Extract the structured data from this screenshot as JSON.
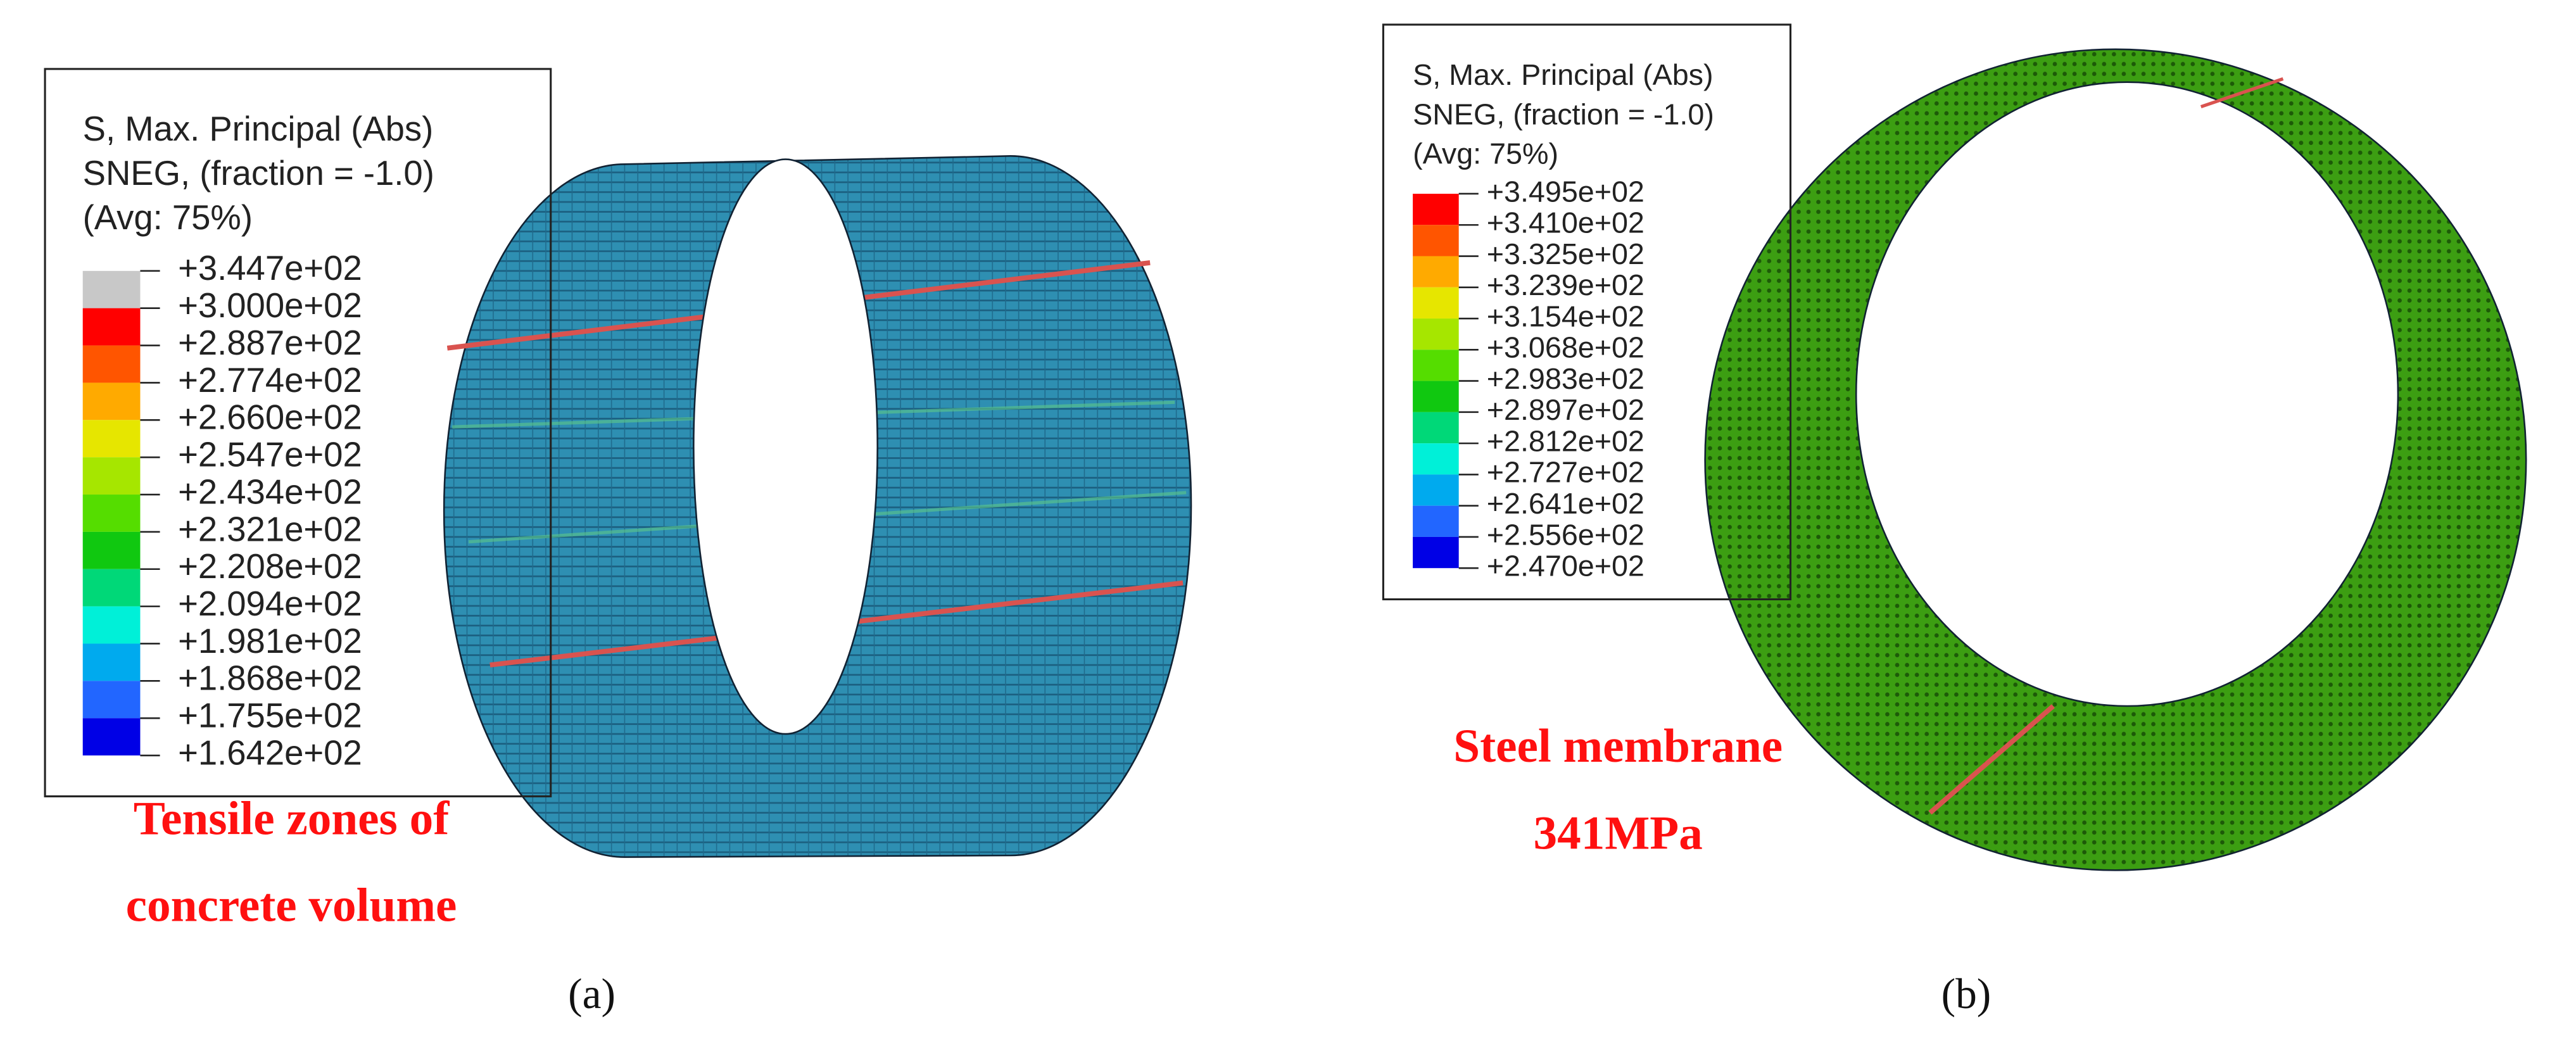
{
  "panels": [
    {
      "legend": {
        "title": [
          "S, Max. Principal (Abs)",
          "SNEG, (fraction = -1.0)",
          "(Avg: 75%)"
        ],
        "levels": [
          "+3.447e+02",
          "+3.000e+02",
          "+2.887e+02",
          "+2.774e+02",
          "+2.660e+02",
          "+2.547e+02",
          "+2.434e+02",
          "+2.321e+02",
          "+2.208e+02",
          "+2.094e+02",
          "+1.981e+02",
          "+1.868e+02",
          "+1.755e+02",
          "+1.642e+02"
        ],
        "colors": [
          "#c8c8c8",
          "#ff0000",
          "#ff5500",
          "#ffaa00",
          "#e6e600",
          "#a6e600",
          "#55dd00",
          "#10c810",
          "#00d878",
          "#00f0d8",
          "#00aaee",
          "#2266ff",
          "#0000e6"
        ]
      },
      "annotation": [
        "Tensile zones of",
        "concrete volume"
      ],
      "caption": "(a)"
    },
    {
      "legend": {
        "title": [
          "S, Max. Principal (Abs)",
          "SNEG, (fraction = -1.0)",
          "(Avg: 75%)"
        ],
        "levels": [
          "+3.495e+02",
          "+3.410e+02",
          "+3.325e+02",
          "+3.239e+02",
          "+3.154e+02",
          "+3.068e+02",
          "+2.983e+02",
          "+2.897e+02",
          "+2.812e+02",
          "+2.727e+02",
          "+2.641e+02",
          "+2.556e+02",
          "+2.470e+02"
        ],
        "colors": [
          "#ff0000",
          "#ff5500",
          "#ffaa00",
          "#e6e600",
          "#a6e600",
          "#55dd00",
          "#10c810",
          "#00d878",
          "#00f0d8",
          "#00aaee",
          "#2266ff",
          "#0000e6"
        ]
      },
      "annotation": [
        "Steel membrane",
        "341MPa"
      ],
      "caption": "(b)"
    }
  ]
}
